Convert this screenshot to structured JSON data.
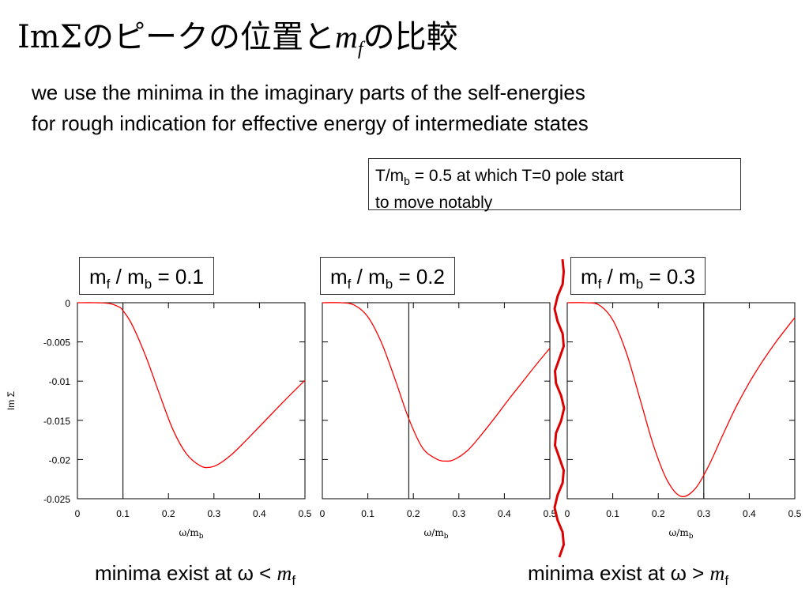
{
  "slide": {
    "title_prefix": "ImΣのピークの位置と",
    "title_var": "m",
    "title_var_sub": "f",
    "title_suffix": "の比較",
    "subtitle_line1": "we use the minima in the imaginary parts of the self-energies",
    "subtitle_line2": "for rough indication for effective energy of  intermediate states",
    "note_a": "T/m",
    "note_sub": "b",
    "note_b": " = 0.5 at which T=0 pole start",
    "note_line2": "to move notably",
    "bottom_left_prefix": "minima exist at ω < ",
    "bottom_right_prefix": "minima exist at ω > ",
    "bottom_var": "m",
    "bottom_var_sub": "f"
  },
  "colors": {
    "curve": "#ff0000",
    "frame": "#000000",
    "wavy_divider": "#dd0000"
  },
  "chart_data": [
    {
      "type": "line",
      "label_a": "m",
      "label_a_sub": "f",
      "label_b": " / m",
      "label_b_sub": "b",
      "label_c": " = 0.1",
      "ylabel": "Im Σ",
      "xlabel": "ω/m",
      "xlabel_sub": "b",
      "xlim": [
        0,
        0.5
      ],
      "ylim": [
        -0.025,
        0
      ],
      "x_ticks": [
        "0",
        "0.1",
        "0.2",
        "0.3",
        "0.4",
        "0.5"
      ],
      "y_ticks": [
        "0",
        "-0.005",
        "-0.01",
        "-0.015",
        "-0.02",
        "-0.025"
      ],
      "vline_x": 0.1,
      "series": [
        {
          "x": [
            0,
            0.04,
            0.07,
            0.09,
            0.1,
            0.12,
            0.15,
            0.18,
            0.21,
            0.24,
            0.27,
            0.29,
            0.31,
            0.34,
            0.37,
            0.4,
            0.43,
            0.46,
            0.5
          ],
          "y": [
            0,
            0,
            -0.0001,
            -0.0005,
            -0.001,
            -0.0028,
            -0.0068,
            -0.0116,
            -0.0162,
            -0.0193,
            -0.0208,
            -0.021,
            -0.0206,
            -0.0193,
            -0.0176,
            -0.0158,
            -0.014,
            -0.0122,
            -0.0099
          ]
        }
      ]
    },
    {
      "type": "line",
      "label_a": "m",
      "label_a_sub": "f",
      "label_b": " / m",
      "label_b_sub": "b",
      "label_c": " = 0.2",
      "xlabel": "ω/m",
      "xlabel_sub": "b",
      "xlim": [
        0,
        0.5
      ],
      "ylim": [
        -0.025,
        0
      ],
      "x_ticks": [
        "0",
        "0.1",
        "0.2",
        "0.3",
        "0.4",
        "0.5"
      ],
      "vline_x": 0.19,
      "series": [
        {
          "x": [
            0,
            0.04,
            0.07,
            0.1,
            0.13,
            0.16,
            0.19,
            0.22,
            0.25,
            0.27,
            0.29,
            0.32,
            0.35,
            0.38,
            0.41,
            0.44,
            0.47,
            0.5
          ],
          "y": [
            0,
            0,
            -0.0003,
            -0.0018,
            -0.0051,
            -0.0098,
            -0.0148,
            -0.0185,
            -0.0199,
            -0.0202,
            -0.02,
            -0.0188,
            -0.0168,
            -0.0146,
            -0.0123,
            -0.0101,
            -0.0079,
            -0.0058
          ]
        }
      ]
    },
    {
      "type": "line",
      "label_a": "m",
      "label_a_sub": "f",
      "label_b": " / m",
      "label_b_sub": "b",
      "label_c": " = 0.3",
      "xlabel": "ω/m",
      "xlabel_sub": "b",
      "xlim": [
        0,
        0.5
      ],
      "ylim": [
        -0.025,
        0
      ],
      "x_ticks": [
        "0",
        "0.1",
        "0.2",
        "0.3",
        "0.4",
        "0.5"
      ],
      "vline_x": 0.3,
      "series": [
        {
          "x": [
            0,
            0.04,
            0.07,
            0.1,
            0.13,
            0.16,
            0.19,
            0.22,
            0.25,
            0.28,
            0.31,
            0.34,
            0.37,
            0.4,
            0.43,
            0.46,
            0.5
          ],
          "y": [
            0,
            0,
            -0.0003,
            -0.0022,
            -0.0064,
            -0.0123,
            -0.0183,
            -0.0227,
            -0.0247,
            -0.0238,
            -0.0209,
            -0.0171,
            -0.0134,
            -0.0102,
            -0.0074,
            -0.0049,
            -0.0019
          ]
        }
      ]
    }
  ]
}
